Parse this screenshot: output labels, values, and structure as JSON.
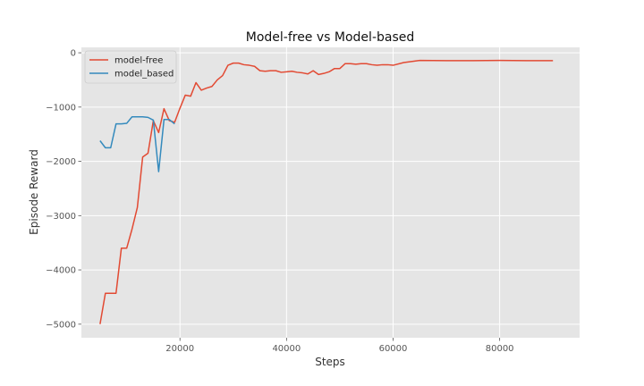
{
  "chart_data": {
    "type": "line",
    "title": "Model-free vs Model-based",
    "xlabel": "Steps",
    "ylabel": "Episode Reward",
    "xlim": [
      1500,
      95000
    ],
    "ylim": [
      -5250,
      100
    ],
    "xticks": [
      20000,
      40000,
      60000,
      80000
    ],
    "yticks": [
      -5000,
      -4000,
      -3000,
      -2000,
      -1000,
      0
    ],
    "grid": true,
    "legend_position": "upper-left",
    "series": [
      {
        "name": "model-free",
        "color": "#E24A33",
        "x": [
          5000,
          6000,
          7000,
          8000,
          9000,
          10000,
          11000,
          12000,
          13000,
          14000,
          15000,
          16000,
          17000,
          18000,
          19000,
          20000,
          21000,
          22000,
          23000,
          24000,
          25000,
          26000,
          27000,
          28000,
          29000,
          30000,
          31000,
          32000,
          33000,
          34000,
          35000,
          36000,
          37000,
          38000,
          39000,
          40000,
          41000,
          42000,
          43000,
          44000,
          45000,
          46000,
          47000,
          48000,
          49000,
          50000,
          51000,
          52000,
          53000,
          54000,
          55000,
          56000,
          57000,
          58000,
          59000,
          60000,
          62000,
          65000,
          70000,
          75000,
          80000,
          85000,
          90000
        ],
        "values": [
          -5000,
          -4430,
          -4430,
          -4430,
          -3600,
          -3600,
          -3250,
          -2850,
          -1920,
          -1850,
          -1250,
          -1470,
          -1030,
          -1250,
          -1280,
          -1020,
          -780,
          -800,
          -550,
          -690,
          -650,
          -620,
          -500,
          -420,
          -230,
          -190,
          -190,
          -220,
          -230,
          -250,
          -330,
          -340,
          -330,
          -330,
          -360,
          -350,
          -340,
          -360,
          -370,
          -390,
          -330,
          -400,
          -380,
          -350,
          -290,
          -290,
          -200,
          -200,
          -210,
          -200,
          -200,
          -220,
          -230,
          -220,
          -220,
          -230,
          -180,
          -140,
          -145,
          -145,
          -140,
          -145,
          -145
        ]
      },
      {
        "name": "model_based",
        "color": "#348ABD",
        "x": [
          5000,
          6000,
          7000,
          8000,
          9000,
          10000,
          11000,
          12000,
          13000,
          14000,
          15000,
          16000,
          17000,
          18000,
          19000
        ],
        "values": [
          -1620,
          -1750,
          -1750,
          -1310,
          -1310,
          -1300,
          -1180,
          -1180,
          -1180,
          -1190,
          -1240,
          -2190,
          -1230,
          -1230,
          -1310
        ]
      }
    ]
  }
}
